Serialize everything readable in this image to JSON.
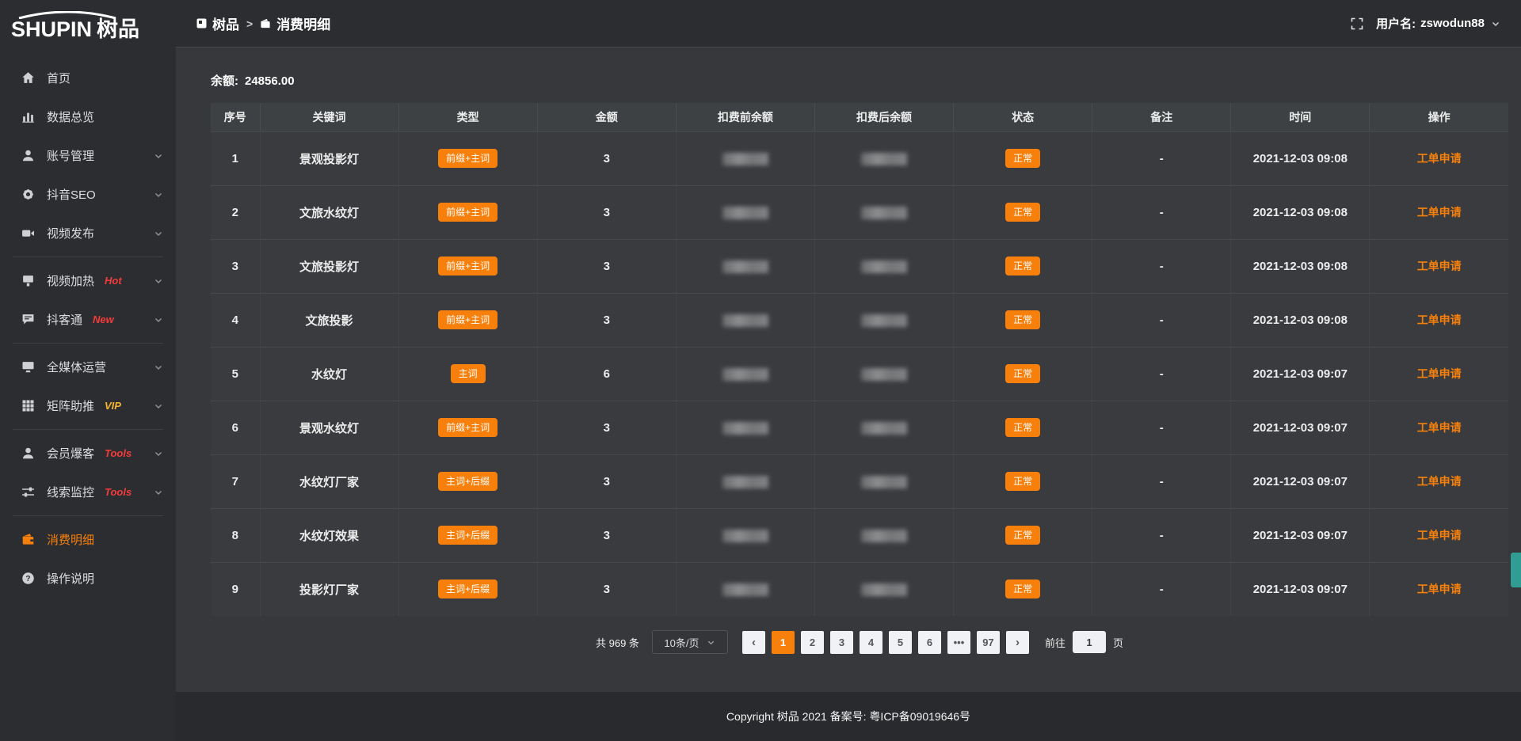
{
  "colors": {
    "accent_orange": "#f7800c",
    "tag_red": "#f43b3b",
    "tag_gold": "#f5b52e",
    "sidebar_bg": "#2b2d30",
    "content_bg": "#36383b",
    "page_button_bg": "#f0f2f5",
    "float_widget_teal": "#2f9d92"
  },
  "logo": {
    "latin": "SHUPIN",
    "cn": "树品"
  },
  "topbar": {
    "breadcrumb": {
      "root": "树品",
      "separator": ">",
      "current": "消费明细"
    },
    "user": {
      "label": "用户名:",
      "name": "zswodun88"
    }
  },
  "sidebar": {
    "items": [
      {
        "label": "首页"
      },
      {
        "label": "数据总览"
      },
      {
        "label": "账号管理"
      },
      {
        "label": "抖音SEO"
      },
      {
        "label": "视频发布"
      },
      {
        "label": "视频加热",
        "tag": "Hot"
      },
      {
        "label": "抖客通",
        "tag": "New"
      },
      {
        "label": "全媒体运营"
      },
      {
        "label": "矩阵助推",
        "tag": "VIP"
      },
      {
        "label": "会员爆客",
        "tag": "Tools"
      },
      {
        "label": "线索监控",
        "tag": "Tools"
      },
      {
        "label": "消费明细"
      },
      {
        "label": "操作说明"
      }
    ]
  },
  "main": {
    "balance": {
      "label": "余额:",
      "value": "24856.00"
    },
    "table": {
      "columns": [
        "序号",
        "关键词",
        "类型",
        "金额",
        "扣费前余额",
        "扣费后余额",
        "状态",
        "备注",
        "时间",
        "操作"
      ],
      "rows": [
        {
          "index": "1",
          "keyword": "景观投影灯",
          "type": "前缀+主词",
          "amount": "3",
          "status": "正常",
          "remark": "-",
          "time": "2021-12-03 09:08",
          "action": "工单申请"
        },
        {
          "index": "2",
          "keyword": "文旅水纹灯",
          "type": "前缀+主词",
          "amount": "3",
          "status": "正常",
          "remark": "-",
          "time": "2021-12-03 09:08",
          "action": "工单申请"
        },
        {
          "index": "3",
          "keyword": "文旅投影灯",
          "type": "前缀+主词",
          "amount": "3",
          "status": "正常",
          "remark": "-",
          "time": "2021-12-03 09:08",
          "action": "工单申请"
        },
        {
          "index": "4",
          "keyword": "文旅投影",
          "type": "前缀+主词",
          "amount": "3",
          "status": "正常",
          "remark": "-",
          "time": "2021-12-03 09:08",
          "action": "工单申请"
        },
        {
          "index": "5",
          "keyword": "水纹灯",
          "type": "主词",
          "amount": "6",
          "status": "正常",
          "remark": "-",
          "time": "2021-12-03 09:07",
          "action": "工单申请"
        },
        {
          "index": "6",
          "keyword": "景观水纹灯",
          "type": "前缀+主词",
          "amount": "3",
          "status": "正常",
          "remark": "-",
          "time": "2021-12-03 09:07",
          "action": "工单申请"
        },
        {
          "index": "7",
          "keyword": "水纹灯厂家",
          "type": "主词+后缀",
          "amount": "3",
          "status": "正常",
          "remark": "-",
          "time": "2021-12-03 09:07",
          "action": "工单申请"
        },
        {
          "index": "8",
          "keyword": "水纹灯效果",
          "type": "主词+后缀",
          "amount": "3",
          "status": "正常",
          "remark": "-",
          "time": "2021-12-03 09:07",
          "action": "工单申请"
        },
        {
          "index": "9",
          "keyword": "投影灯厂家",
          "type": "主词+后缀",
          "amount": "3",
          "status": "正常",
          "remark": "-",
          "time": "2021-12-03 09:07",
          "action": "工单申请"
        }
      ]
    },
    "pagination": {
      "total": "共 969 条",
      "page_size": "10条/页",
      "prev": "‹",
      "pages": [
        "1",
        "2",
        "3",
        "4",
        "5",
        "6",
        "•••",
        "97"
      ],
      "next": "›",
      "goto_label": "前往",
      "goto_value": "1",
      "goto_suffix": "页"
    }
  },
  "footer": {
    "copyright": "Copyright 树品 2021 备案号: 粤ICP备09019646号"
  }
}
